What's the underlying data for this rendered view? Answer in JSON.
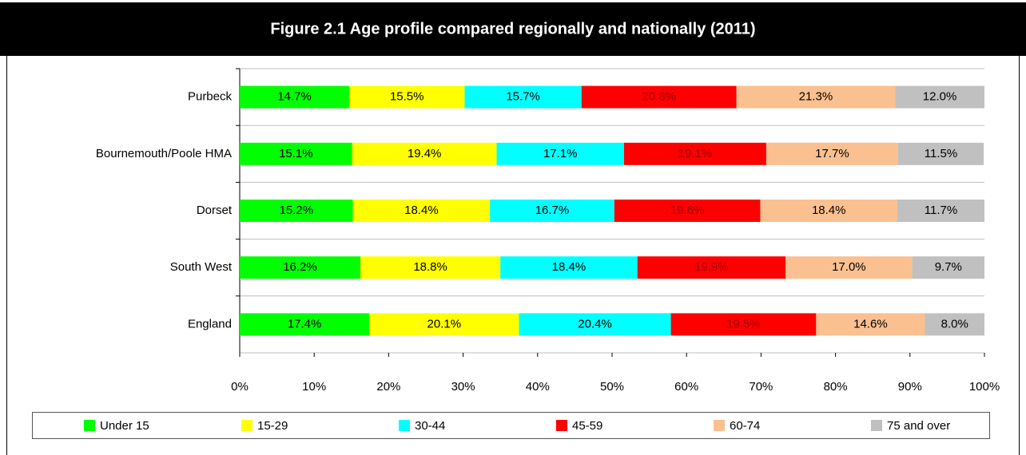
{
  "chart_data": {
    "type": "stacked_barh",
    "title": "Figure 2.1 Age profile compared regionally and nationally (2011)",
    "categories": [
      "Purbeck",
      "Bournemouth/Poole HMA",
      "Dorset",
      "South West",
      "England"
    ],
    "series": [
      {
        "name": "Under 15",
        "color": "#00ff00",
        "values": [
          14.7,
          15.1,
          15.2,
          16.2,
          17.4
        ],
        "value_labels": [
          "14.7%",
          "15.1%",
          "15.2%",
          "16.2%",
          "17.4%"
        ]
      },
      {
        "name": "15-29",
        "color": "#ffff00",
        "values": [
          15.5,
          19.4,
          18.4,
          18.8,
          20.1
        ],
        "value_labels": [
          "15.5%",
          "19.4%",
          "18.4%",
          "18.8%",
          "20.1%"
        ]
      },
      {
        "name": "30-44",
        "color": "#00ffff",
        "values": [
          15.7,
          17.1,
          16.7,
          18.4,
          20.4
        ],
        "value_labels": [
          "15.7%",
          "17.1%",
          "16.7%",
          "18.4%",
          "20.4%"
        ]
      },
      {
        "name": "45-59",
        "color": "#ff0000",
        "values": [
          20.8,
          19.1,
          19.6,
          19.9,
          19.5
        ],
        "value_labels": [
          "20.8%",
          "19.1%",
          "19.6%",
          "19.9%",
          "19.5%"
        ]
      },
      {
        "name": "60-74",
        "color": "#fac090",
        "values": [
          21.3,
          17.7,
          18.4,
          17.0,
          14.6
        ],
        "value_labels": [
          "21.3%",
          "17.7%",
          "18.4%",
          "17.0%",
          "14.6%"
        ]
      },
      {
        "name": "75 and over",
        "color": "#c0c0c0",
        "values": [
          12.0,
          11.5,
          11.7,
          9.7,
          8.0
        ],
        "value_labels": [
          "12.0%",
          "11.5%",
          "11.7%",
          "9.7%",
          "8.0%"
        ]
      }
    ],
    "xlim": [
      0,
      100
    ],
    "xticks": [
      {
        "value": 0,
        "label": "0%"
      },
      {
        "value": 10,
        "label": "10%"
      },
      {
        "value": 20,
        "label": "20%"
      },
      {
        "value": 30,
        "label": "30%"
      },
      {
        "value": 40,
        "label": "40%"
      },
      {
        "value": 50,
        "label": "50%"
      },
      {
        "value": 60,
        "label": "60%"
      },
      {
        "value": 70,
        "label": "70%"
      },
      {
        "value": 80,
        "label": "80%"
      },
      {
        "value": 90,
        "label": "90%"
      },
      {
        "value": 100,
        "label": "100%"
      }
    ],
    "grid": true,
    "legend": "bottom"
  }
}
